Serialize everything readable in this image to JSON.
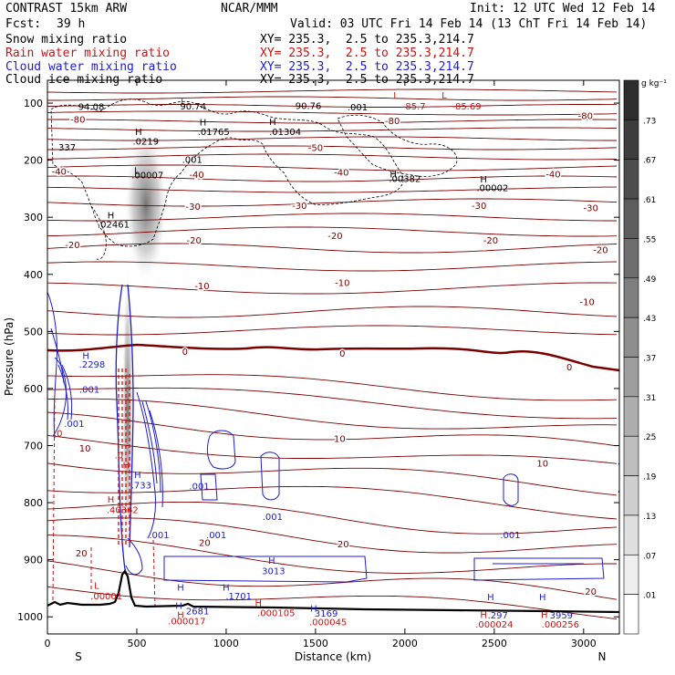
{
  "header": {
    "title": "CONTRAST 15km ARW",
    "fcst_label": "Fcst:",
    "fcst_value": "39 h",
    "org": "NCAR/MMM",
    "init": "Init: 12 UTC Wed 12 Feb 14",
    "valid": "Valid: 03 UTC Fri 14 Feb 14 (13 ChT Fri 14 Feb 14)"
  },
  "fields": [
    {
      "label": "Snow mixing ratio",
      "section": "XY= 235.3,  2.5 to 235.3,214.7",
      "color": "#000000"
    },
    {
      "label": "Rain water mixing ratio",
      "section": "XY= 235.3,  2.5 to 235.3,214.7",
      "color": "#d01010"
    },
    {
      "label": "Cloud water mixing ratio",
      "section": "XY= 235.3,  2.5 to 235.3,214.7",
      "color": "#1c1cd0"
    },
    {
      "label": "Cloud ice mixing ratio",
      "section": "XY= 235.3,  2.5 to 235.3,214.7",
      "color": "#000000"
    }
  ],
  "colorbar": {
    "unit": "g kg⁻¹",
    "ticks": [
      ".01",
      ".07",
      ".13",
      ".19",
      ".25",
      ".31",
      ".37",
      ".43",
      ".49",
      ".55",
      ".61",
      ".67",
      ".73"
    ]
  },
  "chart_data": {
    "type": "contour",
    "xlabel": "Distance (km)",
    "ylabel": "Pressure (hPa)",
    "xlim": [
      0,
      3200
    ],
    "ylim": [
      1030,
      60
    ],
    "x_ticks": [
      0,
      500,
      1000,
      1500,
      2000,
      2500,
      3000
    ],
    "y_ticks": [
      100,
      200,
      300,
      400,
      500,
      600,
      700,
      800,
      900,
      1000
    ],
    "end_labels": {
      "left": "S",
      "right": "N"
    },
    "temperature_labels": [
      {
        "x": 170,
        "p": 134,
        "t": "-80"
      },
      {
        "x": 1930,
        "p": 137,
        "t": "-80"
      },
      {
        "x": 3010,
        "p": 128,
        "t": "-80"
      },
      {
        "x": 1500,
        "p": 184,
        "t": "-50"
      },
      {
        "x": 65,
        "p": 225,
        "t": "-40"
      },
      {
        "x": 835,
        "p": 231,
        "t": "-40"
      },
      {
        "x": 1645,
        "p": 227,
        "t": "-40"
      },
      {
        "x": 2830,
        "p": 230,
        "t": "-40"
      },
      {
        "x": 815,
        "p": 287,
        "t": "-30"
      },
      {
        "x": 1410,
        "p": 285,
        "t": "-30"
      },
      {
        "x": 2415,
        "p": 285,
        "t": "-30"
      },
      {
        "x": 3040,
        "p": 289,
        "t": "-30"
      },
      {
        "x": 140,
        "p": 354,
        "t": "-20"
      },
      {
        "x": 820,
        "p": 346,
        "t": "-20"
      },
      {
        "x": 1610,
        "p": 338,
        "t": "-20"
      },
      {
        "x": 2480,
        "p": 346,
        "t": "-20"
      },
      {
        "x": 3095,
        "p": 363,
        "t": "-20"
      },
      {
        "x": 865,
        "p": 426,
        "t": "-10"
      },
      {
        "x": 1650,
        "p": 420,
        "t": "-10"
      },
      {
        "x": 3020,
        "p": 454,
        "t": "-10"
      },
      {
        "x": 770,
        "p": 541,
        "t": "0"
      },
      {
        "x": 1650,
        "p": 544,
        "t": "0"
      },
      {
        "x": 2920,
        "p": 568,
        "t": "0"
      },
      {
        "x": 1635,
        "p": 694,
        "t": "10"
      },
      {
        "x": 2770,
        "p": 737,
        "t": "10"
      },
      {
        "x": 210,
        "p": 710,
        "t": "10"
      },
      {
        "x": 880,
        "p": 876,
        "t": "20"
      },
      {
        "x": 1655,
        "p": 878,
        "t": "20"
      },
      {
        "x": 190,
        "p": 894,
        "t": "20"
      },
      {
        "x": 3040,
        "p": 961,
        "t": "20"
      }
    ],
    "extrema_labels": [
      {
        "x": 760,
        "p": 102,
        "t": "L",
        "color": "#d01010"
      },
      {
        "x": 1950,
        "p": 92,
        "t": "L",
        "color": "#d01010"
      },
      {
        "x": 2220,
        "p": 92,
        "t": "L",
        "color": "#d01010"
      },
      {
        "x": 245,
        "p": 112,
        "t": "94.08",
        "color": "#000000"
      },
      {
        "x": 815,
        "p": 111,
        "t": "90.74",
        "color": "#000000"
      },
      {
        "x": 1460,
        "p": 110,
        "t": "90.76",
        "color": "#000000"
      },
      {
        "x": 1735,
        "p": 113,
        "t": ".001",
        "color": "#000000"
      },
      {
        "x": 2050,
        "p": 111,
        "t": "-85.7",
        "color": "#d01010"
      },
      {
        "x": 2345,
        "p": 111,
        "t": "-85.69",
        "color": "#d01010"
      },
      {
        "x": 510,
        "p": 156,
        "t": "H",
        "color": "#000000"
      },
      {
        "x": 550,
        "p": 173,
        "t": ".0219",
        "color": "#000000"
      },
      {
        "x": 870,
        "p": 139,
        "t": "H",
        "color": "#000000"
      },
      {
        "x": 930,
        "p": 156,
        "t": ".01765",
        "color": "#000000"
      },
      {
        "x": 1260,
        "p": 138,
        "t": "H",
        "color": "#000000"
      },
      {
        "x": 1330,
        "p": 156,
        "t": ".01304",
        "color": "#000000"
      },
      {
        "x": 110,
        "p": 183,
        "t": "337",
        "color": "#000000"
      },
      {
        "x": 810,
        "p": 205,
        "t": ".001",
        "color": "#000000"
      },
      {
        "x": 500,
        "p": 224,
        "t": "L",
        "color": "#000000"
      },
      {
        "x": 560,
        "p": 232,
        "t": ".00007",
        "color": "#000000"
      },
      {
        "x": 1935,
        "p": 230,
        "t": "H",
        "color": "#000000"
      },
      {
        "x": 2000,
        "p": 238,
        "t": ".00382",
        "color": "#000000"
      },
      {
        "x": 2440,
        "p": 239,
        "t": "H",
        "color": "#000000"
      },
      {
        "x": 2490,
        "p": 254,
        "t": ".00002",
        "color": "#000000"
      },
      {
        "x": 355,
        "p": 302,
        "t": "H",
        "color": "#000000"
      },
      {
        "x": 370,
        "p": 318,
        "t": ".02461",
        "color": "#000000"
      },
      {
        "x": 215,
        "p": 548,
        "t": "H",
        "color": "#1c1cd0"
      },
      {
        "x": 250,
        "p": 563,
        "t": ".2298",
        "color": "#1c1cd0"
      },
      {
        "x": 235,
        "p": 607,
        "t": ".001",
        "color": "#1c1cd0"
      },
      {
        "x": 150,
        "p": 667,
        "t": ".001",
        "color": "#1c1cd0"
      },
      {
        "x": 60,
        "p": 684,
        "t": ".0",
        "color": "#d01010"
      },
      {
        "x": 400,
        "p": 722,
        "t": ".0",
        "color": "#d01010"
      },
      {
        "x": 440,
        "p": 740,
        "t": "H",
        "color": "#d01010"
      },
      {
        "x": 505,
        "p": 757,
        "t": "H",
        "color": "#1c1cd0"
      },
      {
        "x": 525,
        "p": 775,
        "t": ".733",
        "color": "#1c1cd0"
      },
      {
        "x": 355,
        "p": 800,
        "t": "H",
        "color": "#d01010"
      },
      {
        "x": 420,
        "p": 818,
        "t": ".40362",
        "color": "#d01010"
      },
      {
        "x": 850,
        "p": 777,
        "t": ".001",
        "color": "#1c1cd0"
      },
      {
        "x": 625,
        "p": 862,
        "t": ".001",
        "color": "#1c1cd0"
      },
      {
        "x": 945,
        "p": 862,
        "t": ".001",
        "color": "#1c1cd0"
      },
      {
        "x": 1260,
        "p": 830,
        "t": ".001",
        "color": "#1c1cd0"
      },
      {
        "x": 2590,
        "p": 862,
        "t": ".001",
        "color": "#1c1cd0"
      },
      {
        "x": 1255,
        "p": 907,
        "t": "H",
        "color": "#1c1cd0"
      },
      {
        "x": 1265,
        "p": 925,
        "t": "3013",
        "color": "#1c1cd0"
      },
      {
        "x": 275,
        "p": 951,
        "t": "L",
        "color": "#d01010"
      },
      {
        "x": 330,
        "p": 969,
        "t": ".00001",
        "color": "#d01010"
      },
      {
        "x": 745,
        "p": 954,
        "t": "H",
        "color": "#1c1cd0"
      },
      {
        "x": 1000,
        "p": 954,
        "t": "H",
        "color": "#1c1cd0"
      },
      {
        "x": 1070,
        "p": 969,
        "t": ".1701",
        "color": "#1c1cd0"
      },
      {
        "x": 735,
        "p": 986,
        "t": "H",
        "color": "#1c1cd0"
      },
      {
        "x": 840,
        "p": 996,
        "t": "2681",
        "color": "#1c1cd0"
      },
      {
        "x": 1180,
        "p": 981,
        "t": "H",
        "color": "#d01010"
      },
      {
        "x": 1280,
        "p": 999,
        "t": ".000105",
        "color": "#d01010"
      },
      {
        "x": 1490,
        "p": 991,
        "t": "H",
        "color": "#1c1cd0"
      },
      {
        "x": 1560,
        "p": 1000,
        "t": "3169",
        "color": "#1c1cd0"
      },
      {
        "x": 1570,
        "p": 1015,
        "t": ".000045",
        "color": "#d01010"
      },
      {
        "x": 745,
        "p": 1002,
        "t": "H",
        "color": "#d01010"
      },
      {
        "x": 780,
        "p": 1013,
        "t": ".000017",
        "color": "#d01010"
      },
      {
        "x": 2480,
        "p": 971,
        "t": "H",
        "color": "#1c1cd0"
      },
      {
        "x": 2520,
        "p": 1003,
        "t": ".297",
        "color": "#1c1cd0"
      },
      {
        "x": 2770,
        "p": 971,
        "t": "H",
        "color": "#1c1cd0"
      },
      {
        "x": 2875,
        "p": 1003,
        "t": "3959",
        "color": "#1c1cd0"
      },
      {
        "x": 2440,
        "p": 1002,
        "t": "H",
        "color": "#d01010"
      },
      {
        "x": 2500,
        "p": 1019,
        "t": ".000024",
        "color": "#d01010"
      },
      {
        "x": 2780,
        "p": 1002,
        "t": "H",
        "color": "#d01010"
      },
      {
        "x": 2870,
        "p": 1019,
        "t": ".000256",
        "color": "#d01010"
      }
    ]
  }
}
